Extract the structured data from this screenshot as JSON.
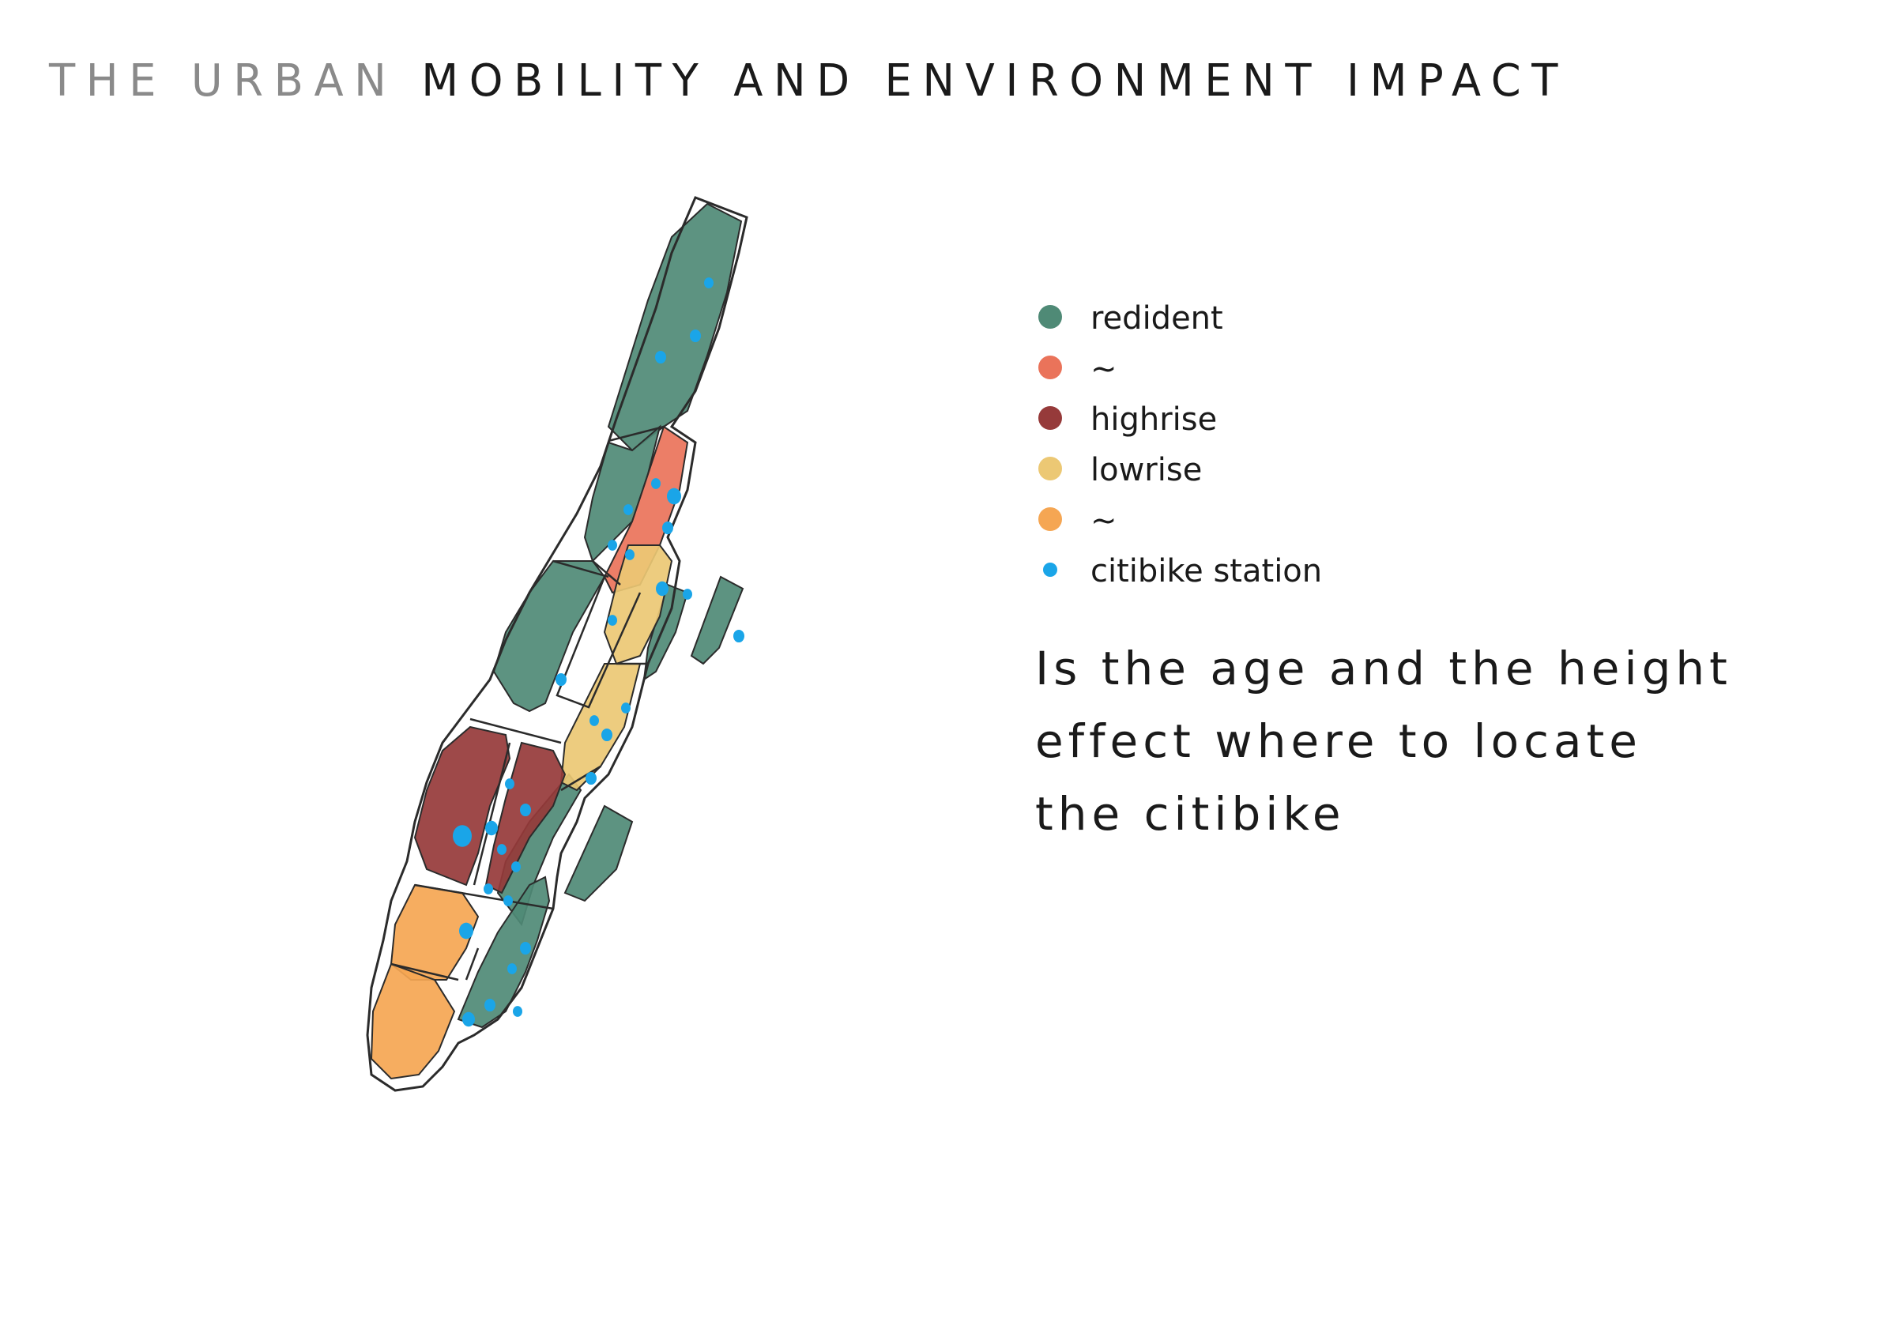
{
  "title": {
    "part_faded": "THE URBAN",
    "part_main": "MOBILITY AND ENVIRONMENT IMPACT"
  },
  "legend": {
    "items": [
      {
        "label": "redident",
        "color": "#4f8a76"
      },
      {
        "label": "~",
        "color": "#ea735a"
      },
      {
        "label": "highrise",
        "color": "#963a3a"
      },
      {
        "label": "lowrise",
        "color": "#ecc874"
      },
      {
        "label": "~",
        "color": "#f5a653"
      },
      {
        "label": "citibike station",
        "color": "#1aa5e8"
      }
    ]
  },
  "question": {
    "lines": [
      "Is the age and the height",
      "effect where to locate",
      "the citibike"
    ]
  },
  "map": {
    "colors": {
      "resident": "#4f8a76",
      "salmon": "#ea735a",
      "highrise": "#963a3a",
      "lowrise": "#ecc874",
      "orange": "#f5a653",
      "station": "#1aa5e8",
      "outline": "#2b2b2b"
    }
  }
}
